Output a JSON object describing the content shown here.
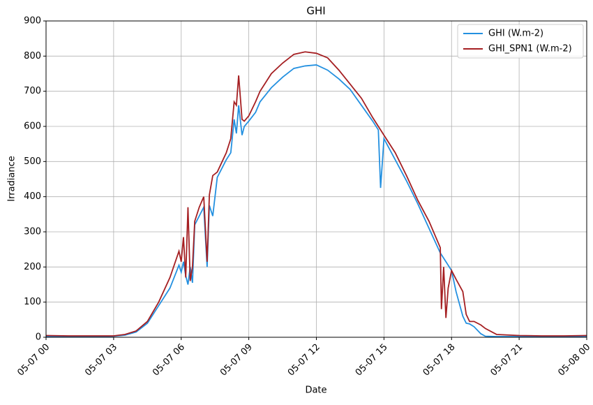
{
  "chart_data": {
    "type": "line",
    "title": "GHI",
    "x_label": "Date",
    "y_label": "Irradiance",
    "x": [
      0,
      1,
      2,
      3,
      3.5,
      4,
      4.5,
      5,
      5.5,
      5.9,
      6.0,
      6.1,
      6.2,
      6.3,
      6.4,
      6.5,
      6.6,
      6.8,
      7.0,
      7.15,
      7.25,
      7.4,
      7.6,
      8.0,
      8.2,
      8.35,
      8.45,
      8.55,
      8.7,
      8.8,
      9.0,
      9.3,
      9.5,
      10,
      10.5,
      11,
      11.5,
      12,
      12.5,
      13,
      13.5,
      14,
      14.5,
      14.75,
      14.85,
      15,
      15.5,
      16,
      16.5,
      17,
      17.5,
      17.55,
      17.65,
      17.75,
      17.85,
      18,
      18.2,
      18.5,
      18.65,
      18.8,
      19,
      19.3,
      19.5,
      20,
      21,
      22,
      23,
      24
    ],
    "series": [
      {
        "name": "GHI (W.m-2)",
        "color": "#2390e0",
        "values": [
          2,
          2,
          2,
          3,
          6,
          15,
          40,
          90,
          140,
          205,
          185,
          215,
          175,
          150,
          200,
          155,
          320,
          345,
          370,
          200,
          375,
          345,
          455,
          505,
          525,
          620,
          580,
          660,
          575,
          600,
          615,
          640,
          670,
          710,
          740,
          765,
          772,
          775,
          760,
          735,
          705,
          660,
          615,
          590,
          425,
          565,
          505,
          445,
          380,
          310,
          240,
          235,
          225,
          215,
          205,
          190,
          130,
          60,
          40,
          38,
          30,
          10,
          3,
          2,
          2,
          2,
          2,
          3
        ]
      },
      {
        "name": "GHI_SPN1 (W.m-2)",
        "color": "#a51f22",
        "values": [
          5,
          4,
          4,
          4,
          8,
          18,
          45,
          100,
          170,
          245,
          215,
          285,
          170,
          370,
          160,
          200,
          330,
          370,
          400,
          215,
          405,
          460,
          470,
          525,
          565,
          670,
          660,
          745,
          620,
          615,
          630,
          670,
          700,
          750,
          780,
          805,
          812,
          808,
          795,
          760,
          720,
          680,
          625,
          600,
          590,
          575,
          525,
          460,
          390,
          330,
          255,
          80,
          200,
          55,
          140,
          190,
          165,
          130,
          65,
          45,
          45,
          35,
          25,
          8,
          5,
          4,
          4,
          5
        ]
      }
    ],
    "xlim": [
      0,
      24
    ],
    "xticks": [
      {
        "value": 0,
        "label": "05-07 00"
      },
      {
        "value": 3,
        "label": "05-07 03"
      },
      {
        "value": 6,
        "label": "05-07 06"
      },
      {
        "value": 9,
        "label": "05-07 09"
      },
      {
        "value": 12,
        "label": "05-07 12"
      },
      {
        "value": 15,
        "label": "05-07 15"
      },
      {
        "value": 18,
        "label": "05-07 18"
      },
      {
        "value": 21,
        "label": "05-07 21"
      },
      {
        "value": 24,
        "label": "05-08 00"
      }
    ],
    "ylim": [
      0,
      900
    ],
    "yticks": [
      0,
      100,
      200,
      300,
      400,
      500,
      600,
      700,
      800,
      900
    ],
    "grid": true,
    "legend": "upper right"
  }
}
